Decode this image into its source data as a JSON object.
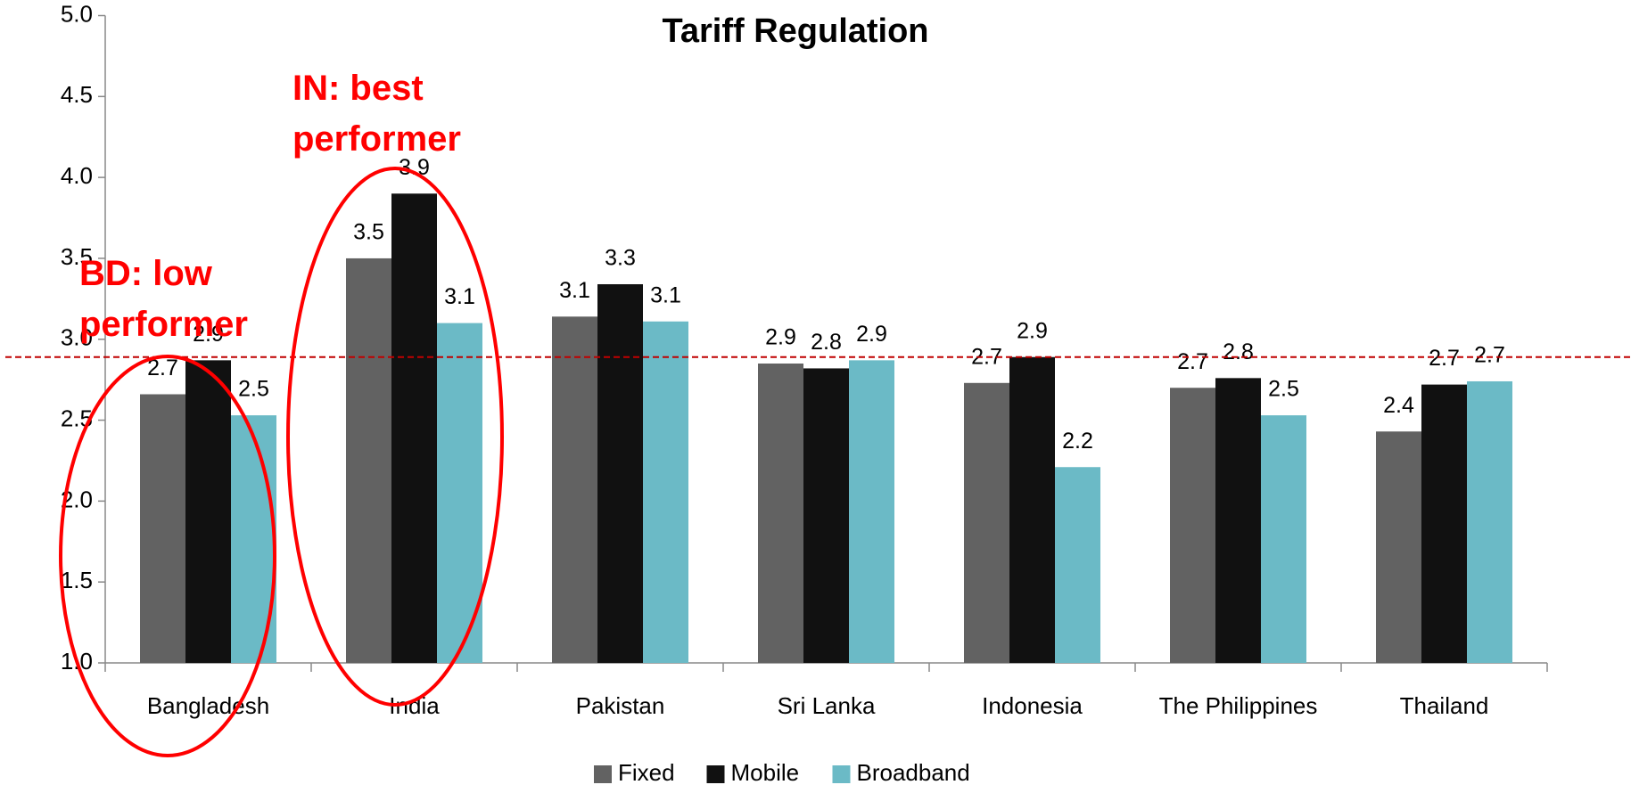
{
  "chart_data": {
    "type": "bar",
    "title": "Tariff Regulation",
    "categories": [
      "Bangladesh",
      "India",
      "Pakistan",
      "Sri Lanka",
      "Indonesia",
      "The Philippines",
      "Thailand"
    ],
    "series": [
      {
        "name": "Fixed",
        "color": "#626262",
        "values": [
          2.66,
          3.5,
          3.14,
          2.85,
          2.73,
          2.7,
          2.43
        ],
        "value_labels": [
          "2.7",
          "3.5",
          "3.1",
          "2.9",
          "2.7",
          "2.7",
          "2.4"
        ]
      },
      {
        "name": "Mobile",
        "color": "#111111",
        "values": [
          2.87,
          3.9,
          3.34,
          2.82,
          2.89,
          2.76,
          2.72
        ],
        "value_labels": [
          "2.9",
          "3.9",
          "3.3",
          "2.8",
          "2.9",
          "2.8",
          "2.7"
        ]
      },
      {
        "name": "Broadband",
        "color": "#6bbac6",
        "values": [
          2.53,
          3.1,
          3.11,
          2.87,
          2.21,
          2.53,
          2.74
        ],
        "value_labels": [
          "2.5",
          "3.1",
          "3.1",
          "2.9",
          "2.2",
          "2.5",
          "2.7"
        ]
      }
    ],
    "ylim": [
      1,
      5
    ],
    "yticks": [
      {
        "value": 1,
        "label": "1.0"
      },
      {
        "value": 1.5,
        "label": "1.5"
      },
      {
        "value": 2,
        "label": "2.0"
      },
      {
        "value": 2.5,
        "label": "2.5"
      },
      {
        "value": 3,
        "label": "3.0"
      },
      {
        "value": 3.5,
        "label": "3.5"
      },
      {
        "value": 4,
        "label": "4.0"
      },
      {
        "value": 4.5,
        "label": "4.5"
      },
      {
        "value": 5,
        "label": "5.0"
      }
    ],
    "reference_line": {
      "value": 2.89,
      "color": "#c00000"
    },
    "annotations": [
      {
        "lines": [
          "IN:  best",
          "performer"
        ]
      },
      {
        "lines": [
          "BD: low",
          "performer"
        ]
      }
    ],
    "legend": "bottom"
  }
}
